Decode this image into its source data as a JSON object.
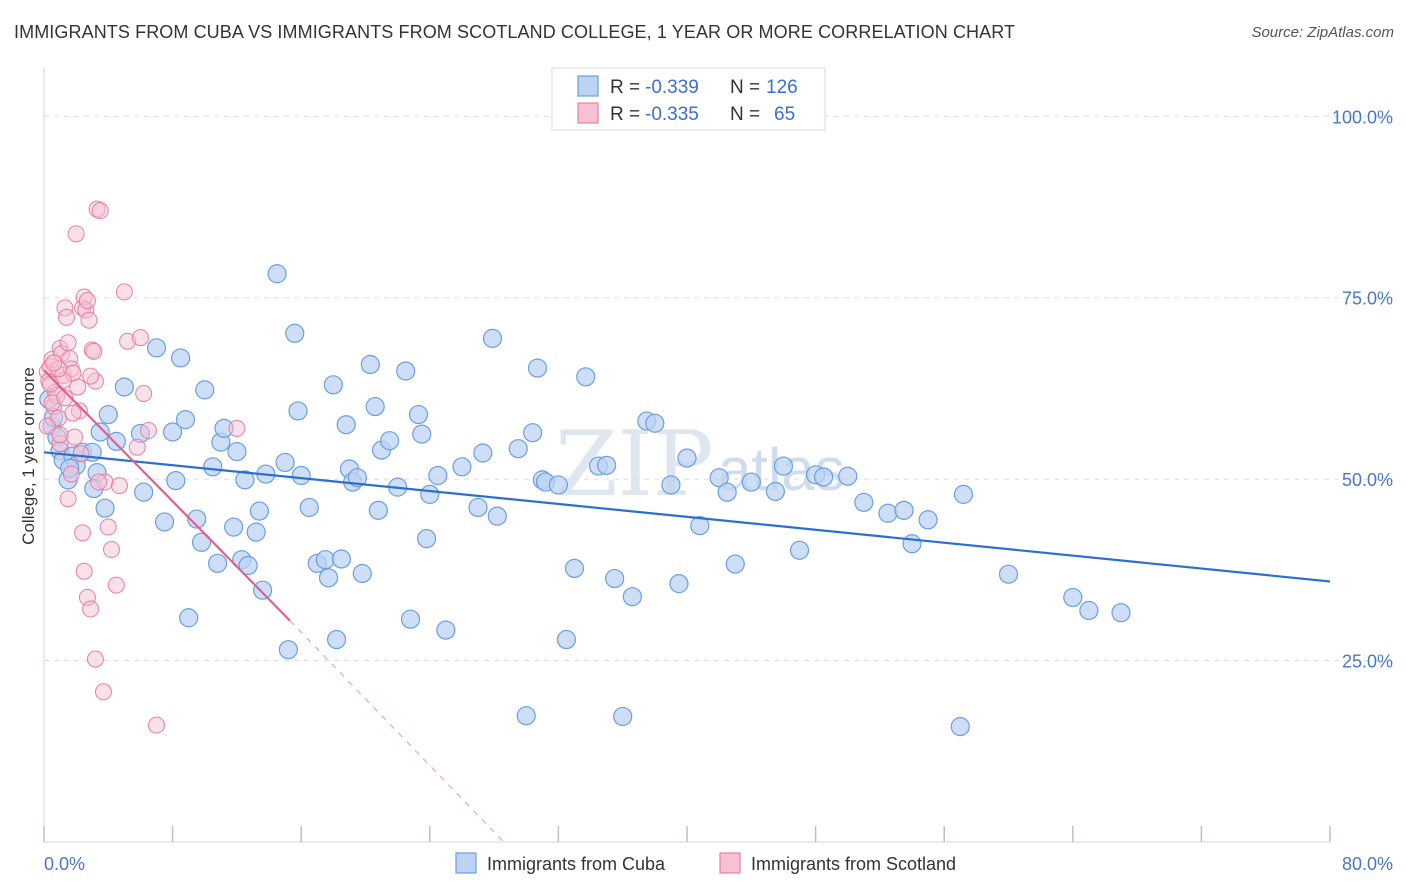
{
  "title": "IMMIGRANTS FROM CUBA VS IMMIGRANTS FROM SCOTLAND COLLEGE, 1 YEAR OR MORE CORRELATION CHART",
  "source": "Source: ZipAtlas.com",
  "watermark": {
    "zip": "ZIP",
    "atlas": "atlas"
  },
  "colors": {
    "cuba": "#6a9fe0",
    "cuba_fill": "#bcd3f3",
    "cuba_line": "#2a6fd1",
    "scotland": "#e87fa2",
    "scotland_fill": "#f6c2d3",
    "scotland_line": "#e0608f",
    "grid": "#d8dde6",
    "tick_text": "#4a77c4"
  },
  "legend": {
    "rows": [
      {
        "r_label": "R = ",
        "r_value": "-0.339",
        "n_label": "N = ",
        "n_value": "126"
      },
      {
        "r_label": "R = ",
        "r_value": "-0.335",
        "n_label": "N = ",
        "n_value": "65"
      }
    ]
  },
  "chart_data": {
    "type": "scatter",
    "title": "IMMIGRANTS FROM CUBA VS IMMIGRANTS FROM SCOTLAND COLLEGE, 1 YEAR OR MORE CORRELATION CHART",
    "xlabel": "",
    "ylabel": "College, 1 year or more",
    "xlim": [
      0,
      80
    ],
    "ylim": [
      0,
      105
    ],
    "x_tick_labels": [
      "0.0%",
      "80.0%"
    ],
    "y_tick_labels": [
      "100.0%",
      "75.0%",
      "50.0%",
      "25.0%"
    ],
    "y_ticks": [
      100,
      75,
      50,
      25
    ],
    "grid": true,
    "legend_placement": "bottom-center",
    "series": [
      {
        "name": "Immigrants from Cuba",
        "color": "#6a9fe0",
        "trend": {
          "x": [
            0,
            80
          ],
          "y": [
            53.7,
            35.9
          ]
        },
        "points": [
          [
            0.5,
            57.3
          ],
          [
            0.8,
            55.8
          ],
          [
            1.0,
            53.9
          ],
          [
            1.2,
            52.6
          ],
          [
            1.5,
            49.9
          ],
          [
            1.8,
            53.2
          ],
          [
            2.0,
            51.9
          ],
          [
            2.4,
            53.7
          ],
          [
            3.0,
            53.7
          ],
          [
            3.3,
            50.9
          ],
          [
            3.1,
            48.7
          ],
          [
            3.8,
            46.0
          ],
          [
            4.0,
            58.9
          ],
          [
            3.5,
            56.5
          ],
          [
            4.5,
            55.2
          ],
          [
            5.0,
            62.7
          ],
          [
            6.0,
            56.3
          ],
          [
            6.2,
            48.2
          ],
          [
            7.0,
            68.1
          ],
          [
            7.5,
            44.1
          ],
          [
            8.0,
            56.5
          ],
          [
            8.2,
            49.8
          ],
          [
            8.5,
            66.7
          ],
          [
            8.8,
            58.2
          ],
          [
            9.0,
            30.9
          ],
          [
            9.5,
            44.5
          ],
          [
            9.8,
            41.3
          ],
          [
            10.0,
            62.3
          ],
          [
            10.5,
            51.7
          ],
          [
            10.8,
            38.4
          ],
          [
            11.0,
            55.1
          ],
          [
            11.2,
            57.0
          ],
          [
            11.8,
            43.4
          ],
          [
            12.0,
            53.8
          ],
          [
            12.3,
            38.9
          ],
          [
            12.5,
            49.9
          ],
          [
            12.7,
            38.1
          ],
          [
            13.2,
            42.7
          ],
          [
            13.4,
            45.6
          ],
          [
            13.6,
            34.7
          ],
          [
            13.8,
            50.7
          ],
          [
            14.5,
            78.3
          ],
          [
            15.0,
            52.3
          ],
          [
            15.2,
            26.5
          ],
          [
            15.6,
            70.1
          ],
          [
            15.8,
            59.4
          ],
          [
            16.0,
            50.5
          ],
          [
            16.5,
            46.1
          ],
          [
            17.0,
            38.4
          ],
          [
            17.5,
            38.9
          ],
          [
            17.7,
            36.4
          ],
          [
            18.0,
            63.0
          ],
          [
            18.2,
            27.9
          ],
          [
            18.5,
            39.0
          ],
          [
            18.8,
            57.5
          ],
          [
            19.0,
            51.4
          ],
          [
            19.2,
            49.6
          ],
          [
            19.5,
            50.2
          ],
          [
            19.8,
            37.0
          ],
          [
            20.3,
            65.8
          ],
          [
            20.6,
            60.0
          ],
          [
            20.8,
            45.7
          ],
          [
            21.0,
            54.0
          ],
          [
            21.5,
            55.3
          ],
          [
            22.0,
            48.9
          ],
          [
            22.5,
            64.9
          ],
          [
            22.8,
            30.7
          ],
          [
            23.3,
            58.9
          ],
          [
            23.5,
            56.2
          ],
          [
            23.8,
            41.8
          ],
          [
            24.0,
            47.9
          ],
          [
            24.5,
            50.5
          ],
          [
            25.0,
            29.2
          ],
          [
            26.0,
            51.7
          ],
          [
            27.0,
            46.1
          ],
          [
            27.3,
            53.6
          ],
          [
            27.9,
            69.4
          ],
          [
            28.2,
            44.9
          ],
          [
            29.5,
            54.2
          ],
          [
            30.0,
            17.4
          ],
          [
            30.4,
            56.4
          ],
          [
            30.7,
            65.3
          ],
          [
            31.0,
            49.9
          ],
          [
            31.2,
            49.6
          ],
          [
            32.0,
            49.2
          ],
          [
            32.5,
            27.9
          ],
          [
            33.0,
            37.7
          ],
          [
            33.7,
            64.1
          ],
          [
            34.5,
            51.8
          ],
          [
            35.0,
            51.9
          ],
          [
            35.5,
            36.3
          ],
          [
            36.0,
            17.3
          ],
          [
            36.6,
            33.8
          ],
          [
            37.5,
            58.0
          ],
          [
            38.0,
            57.7
          ],
          [
            39.0,
            49.2
          ],
          [
            39.5,
            35.6
          ],
          [
            40.0,
            52.9
          ],
          [
            40.8,
            43.6
          ],
          [
            42.0,
            50.2
          ],
          [
            42.5,
            48.2
          ],
          [
            43.0,
            38.3
          ],
          [
            44.0,
            49.6
          ],
          [
            45.5,
            48.3
          ],
          [
            46.0,
            51.8
          ],
          [
            47.0,
            40.2
          ],
          [
            48.0,
            50.6
          ],
          [
            48.5,
            50.3
          ],
          [
            50.0,
            50.4
          ],
          [
            51.0,
            46.8
          ],
          [
            52.5,
            45.3
          ],
          [
            53.5,
            45.7
          ],
          [
            54.0,
            41.1
          ],
          [
            55.0,
            44.4
          ],
          [
            57.0,
            15.9
          ],
          [
            57.2,
            47.9
          ],
          [
            60.0,
            36.9
          ],
          [
            64.0,
            33.7
          ],
          [
            65.0,
            31.9
          ],
          [
            67.0,
            31.6
          ],
          [
            0.3,
            61.0
          ],
          [
            1.6,
            51.5
          ],
          [
            0.6,
            58.5
          ]
        ]
      },
      {
        "name": "Immigrants from Scotland",
        "color": "#e87fa2",
        "trend": {
          "x": [
            0,
            15.3
          ],
          "y": [
            65.0,
            30.5
          ]
        },
        "trend_ext": {
          "x": [
            15.3,
            28.6
          ],
          "y": [
            30.5,
            0
          ]
        },
        "points": [
          [
            0.2,
            64.8
          ],
          [
            0.3,
            63.5
          ],
          [
            0.4,
            65.5
          ],
          [
            0.5,
            66.5
          ],
          [
            0.6,
            60.0
          ],
          [
            0.7,
            62.0
          ],
          [
            0.8,
            61.5
          ],
          [
            0.9,
            58.4
          ],
          [
            1.0,
            68.0
          ],
          [
            1.1,
            67.3
          ],
          [
            1.2,
            64.3
          ],
          [
            1.3,
            73.6
          ],
          [
            1.4,
            72.3
          ],
          [
            1.5,
            68.8
          ],
          [
            1.6,
            66.6
          ],
          [
            1.7,
            65.2
          ],
          [
            1.8,
            64.6
          ],
          [
            1.9,
            55.8
          ],
          [
            2.0,
            83.8
          ],
          [
            2.1,
            62.7
          ],
          [
            2.2,
            59.4
          ],
          [
            2.3,
            53.5
          ],
          [
            2.4,
            73.6
          ],
          [
            2.5,
            75.1
          ],
          [
            2.6,
            73.3
          ],
          [
            2.7,
            74.6
          ],
          [
            2.8,
            71.9
          ],
          [
            3.0,
            67.8
          ],
          [
            3.1,
            67.6
          ],
          [
            3.2,
            63.5
          ],
          [
            3.3,
            87.2
          ],
          [
            3.5,
            87.0
          ],
          [
            3.8,
            49.6
          ],
          [
            4.0,
            43.4
          ],
          [
            4.2,
            40.3
          ],
          [
            4.5,
            35.4
          ],
          [
            4.7,
            49.1
          ],
          [
            5.0,
            75.8
          ],
          [
            5.2,
            69.0
          ],
          [
            5.8,
            54.4
          ],
          [
            6.0,
            69.5
          ],
          [
            6.2,
            61.8
          ],
          [
            6.5,
            56.7
          ],
          [
            7.0,
            16.1
          ],
          [
            0.2,
            57.3
          ],
          [
            0.5,
            60.5
          ],
          [
            1.0,
            54.9
          ],
          [
            1.5,
            47.3
          ],
          [
            1.7,
            50.7
          ],
          [
            2.4,
            42.6
          ],
          [
            2.5,
            37.3
          ],
          [
            2.7,
            33.7
          ],
          [
            2.9,
            32.1
          ],
          [
            3.2,
            25.2
          ],
          [
            3.7,
            20.7
          ],
          [
            12.0,
            57.0
          ],
          [
            2.9,
            64.2
          ],
          [
            1.2,
            63.6
          ],
          [
            0.9,
            65.2
          ],
          [
            0.6,
            66.0
          ],
          [
            1.3,
            61.2
          ],
          [
            0.4,
            63.1
          ],
          [
            1.8,
            59.1
          ],
          [
            3.4,
            49.6
          ],
          [
            1.0,
            56.1
          ]
        ]
      }
    ]
  },
  "bottom_legend": [
    {
      "label": "Immigrants from Cuba"
    },
    {
      "label": "Immigrants from Scotland"
    }
  ]
}
